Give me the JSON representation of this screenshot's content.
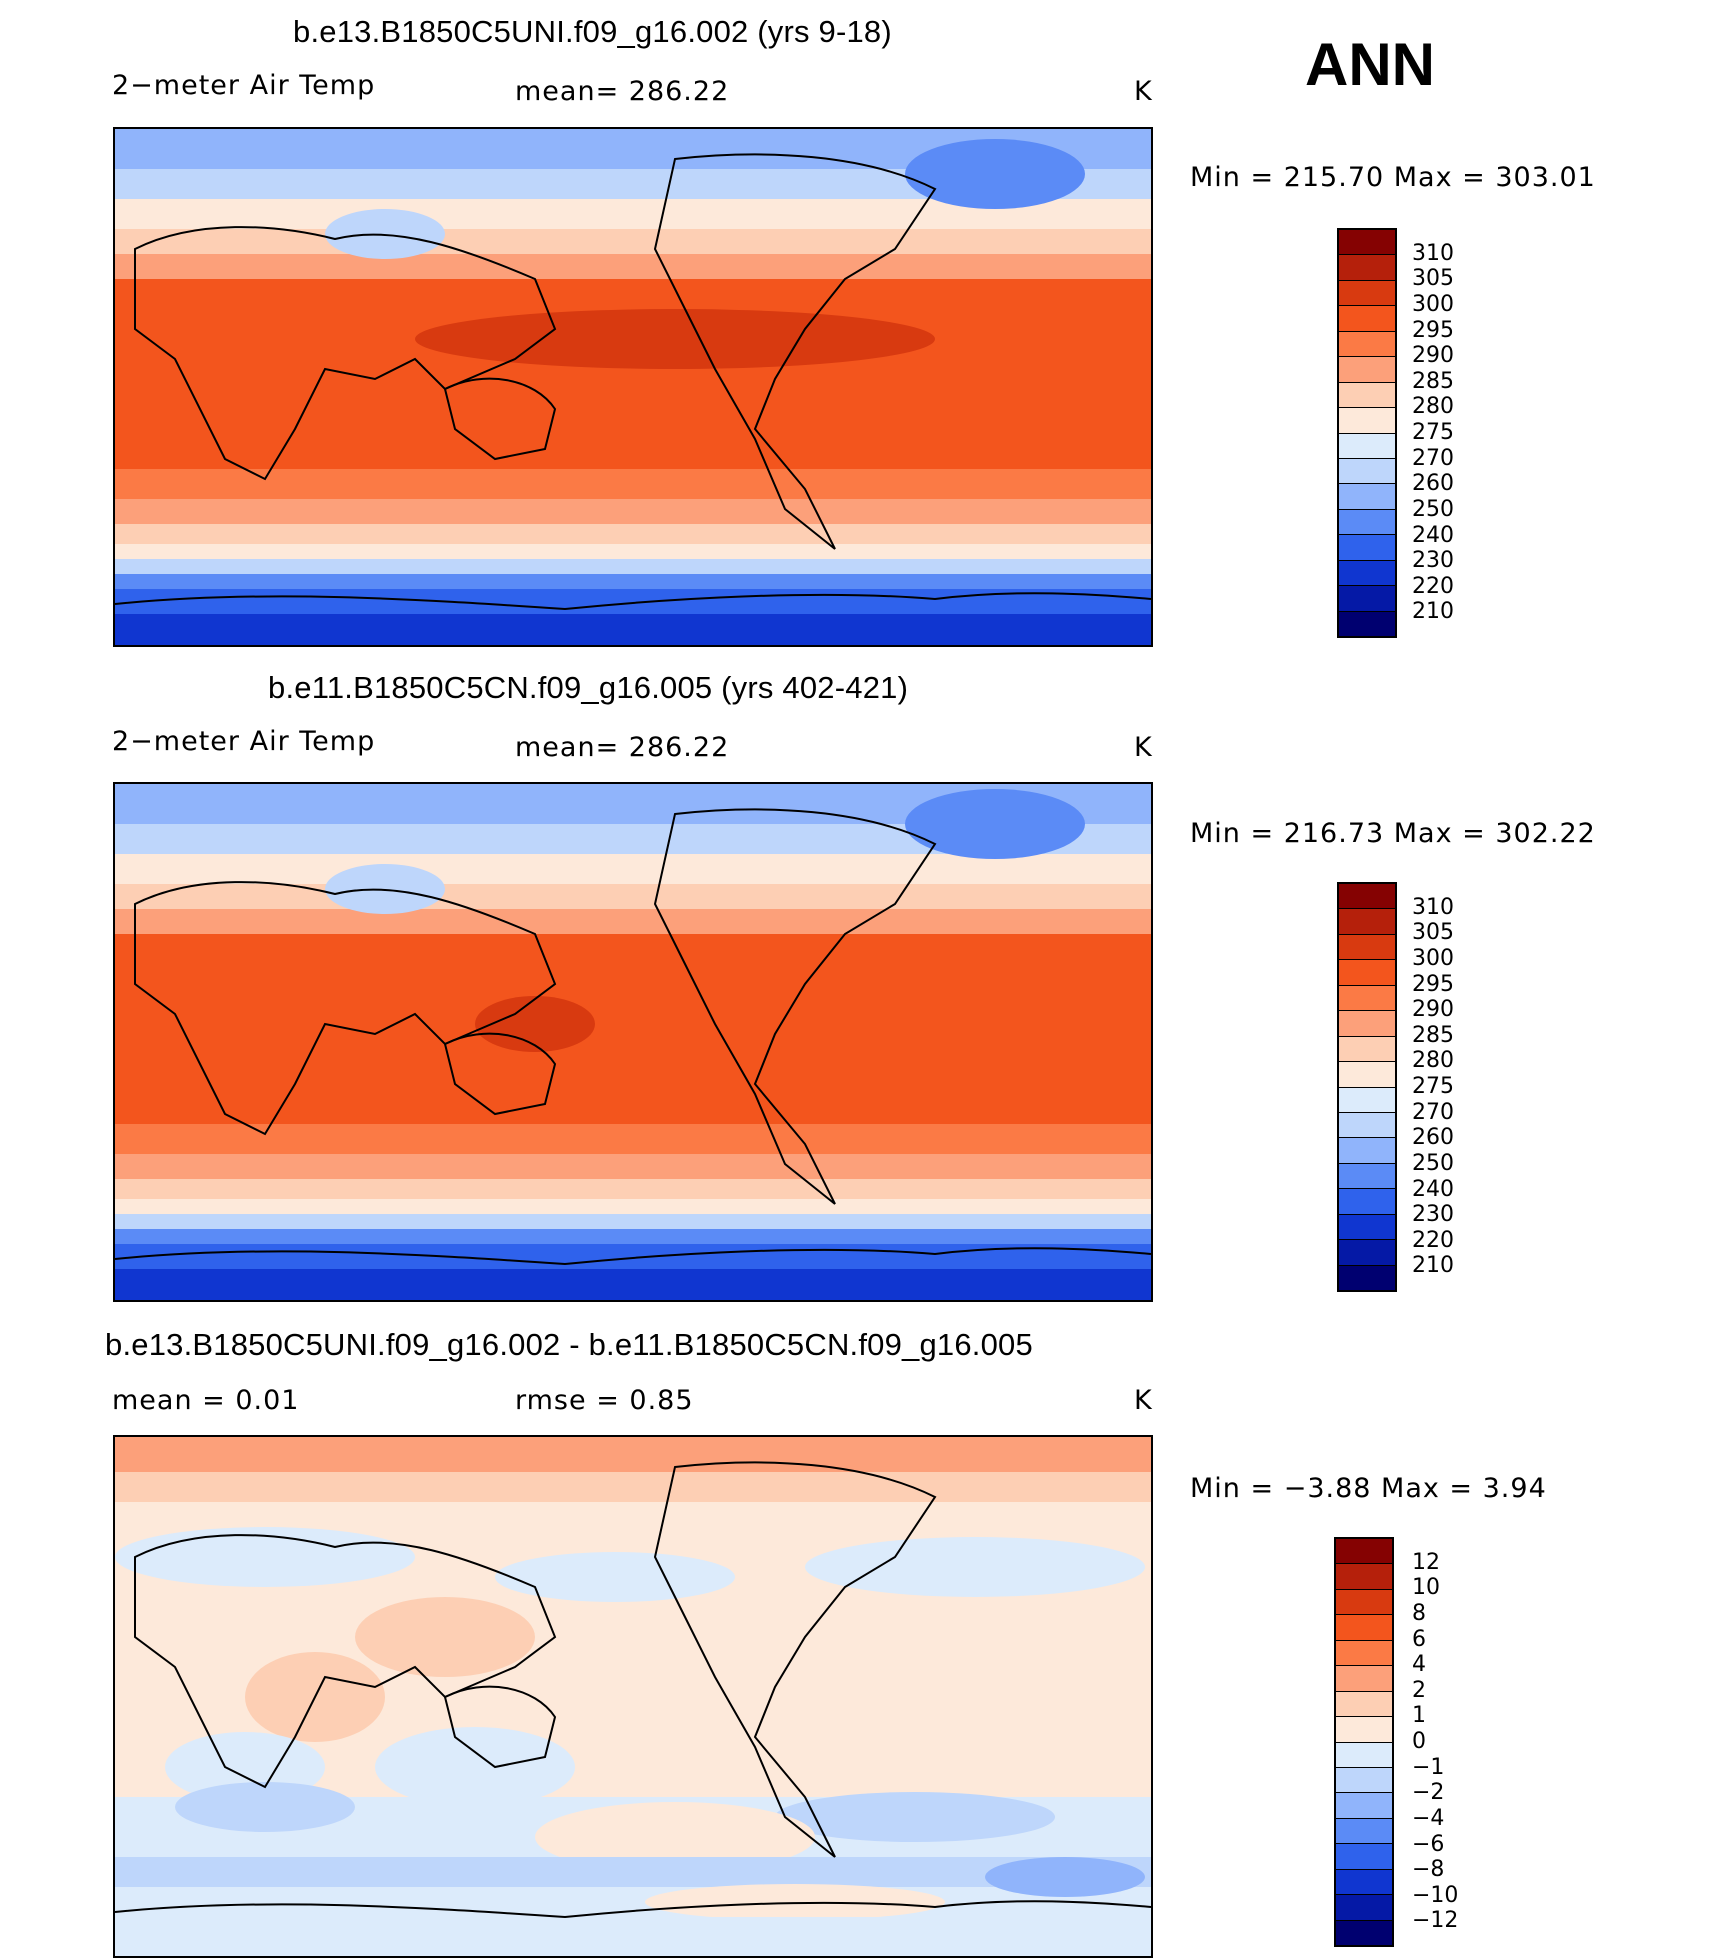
{
  "header": {
    "season": "ANN"
  },
  "panels": [
    {
      "title": "b.e13.B1850C5UNI.f09_g16.002 (yrs 9-18)",
      "variable": "2−meter Air Temp",
      "stat_text": "mean=  286.22",
      "units": "K",
      "minmax": "Min  =  215.70  Max  =  303.01",
      "colorbar_labels": [
        "310",
        "305",
        "300",
        "295",
        "290",
        "285",
        "280",
        "275",
        "270",
        "260",
        "250",
        "240",
        "230",
        "220",
        "210"
      ],
      "colorbar_colors": [
        "#850202",
        "#b5200b",
        "#d83a10",
        "#f3551d",
        "#fb7a45",
        "#fca07a",
        "#fdcfb4",
        "#fde9da",
        "#dcebfb",
        "#bed6fb",
        "#90b4fb",
        "#5b8bf6",
        "#2f62ec",
        "#1036d0",
        "#0519a6",
        "#000070"
      ]
    },
    {
      "title": "b.e11.B1850C5CN.f09_g16.005 (yrs 402-421)",
      "variable": "2−meter Air Temp",
      "stat_text": "mean=  286.22",
      "units": "K",
      "minmax": "Min  =  216.73  Max  =  302.22",
      "colorbar_labels": [
        "310",
        "305",
        "300",
        "295",
        "290",
        "285",
        "280",
        "275",
        "270",
        "260",
        "250",
        "240",
        "230",
        "220",
        "210"
      ],
      "colorbar_colors": [
        "#850202",
        "#b5200b",
        "#d83a10",
        "#f3551d",
        "#fb7a45",
        "#fca07a",
        "#fdcfb4",
        "#fde9da",
        "#dcebfb",
        "#bed6fb",
        "#90b4fb",
        "#5b8bf6",
        "#2f62ec",
        "#1036d0",
        "#0519a6",
        "#000070"
      ]
    },
    {
      "title": "b.e13.B1850C5UNI.f09_g16.002 - b.e11.B1850C5CN.f09_g16.005",
      "stat_mean": "mean  =      0.01",
      "stat_rmse": "rmse  =      0.85",
      "units": "K",
      "minmax": "Min  =    −3.88  Max  =        3.94",
      "colorbar_labels": [
        "12",
        "10",
        "8",
        "6",
        "4",
        "2",
        "1",
        "0",
        "−1",
        "−2",
        "−4",
        "−6",
        "−8",
        "−10",
        "−12"
      ],
      "colorbar_colors": [
        "#850202",
        "#b5200b",
        "#d83a10",
        "#f3551d",
        "#fb7a45",
        "#fca07a",
        "#fdcfb4",
        "#fde9da",
        "#dcebfb",
        "#bed6fb",
        "#90b4fb",
        "#5b8bf6",
        "#2f62ec",
        "#1036d0",
        "#0519a6",
        "#000070"
      ]
    }
  ]
}
